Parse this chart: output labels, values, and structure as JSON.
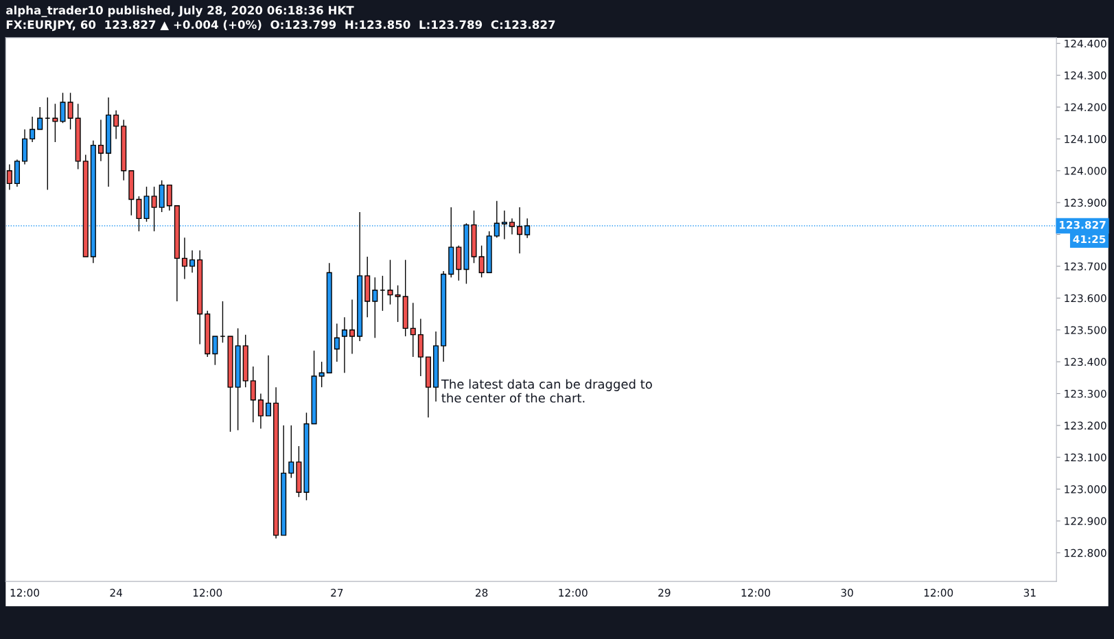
{
  "chart_data": {
    "type": "candlestick",
    "title": "alpha_trader10 published, July 28, 2020 06:18:36 HKT",
    "subtitle": "FX:EURJPY, 60  123.827 ▲ +0.004 (+0%)  O:123.799  H:123.850  L:123.789  C:123.827",
    "categories": [
      null,
      null,
      "12:00",
      null,
      null,
      null,
      null,
      null,
      null,
      null,
      null,
      null,
      null,
      null,
      "24",
      null,
      null,
      null,
      null,
      null,
      null,
      null,
      null,
      null,
      null,
      null,
      "12:00",
      null,
      null,
      null,
      null,
      null,
      null,
      null,
      null,
      null,
      null,
      null,
      null,
      null,
      null,
      null,
      null,
      "27",
      null,
      null,
      null,
      null,
      null,
      null,
      null,
      null,
      null,
      null,
      null,
      null,
      null,
      null,
      null,
      null,
      null,
      null,
      "28",
      null,
      null,
      null,
      null,
      null,
      null,
      null,
      null,
      null,
      null,
      null,
      "12:00",
      null,
      null,
      null,
      null,
      null,
      null,
      null,
      null,
      null,
      null,
      null,
      "29",
      null,
      null,
      null,
      null,
      null,
      null,
      null,
      null,
      null,
      null,
      null,
      "12:00",
      null,
      null,
      null,
      null,
      null,
      null,
      null,
      null,
      null,
      null,
      null,
      "30",
      null,
      null,
      null,
      null,
      null,
      null,
      null,
      null,
      null,
      null,
      null,
      "12:00",
      null,
      null,
      null,
      null,
      null,
      null,
      null,
      null,
      null,
      null,
      null,
      "31",
      null,
      null,
      null
    ],
    "ohlc": [
      [
        124.0,
        124.02,
        123.94,
        123.96
      ],
      [
        123.96,
        124.035,
        123.95,
        124.03
      ],
      [
        124.03,
        124.13,
        124.02,
        124.1
      ],
      [
        124.1,
        124.17,
        124.09,
        124.13
      ],
      [
        124.13,
        124.2,
        124.13,
        124.165
      ],
      [
        124.165,
        124.23,
        123.94,
        124.165
      ],
      [
        124.165,
        124.21,
        124.09,
        124.155
      ],
      [
        124.155,
        124.245,
        124.15,
        124.215
      ],
      [
        124.215,
        124.245,
        124.13,
        124.165
      ],
      [
        124.165,
        124.21,
        124.005,
        124.03
      ],
      [
        124.03,
        124.05,
        123.73,
        123.73
      ],
      [
        123.73,
        124.095,
        123.71,
        124.08
      ],
      [
        124.08,
        124.16,
        124.03,
        124.055
      ],
      [
        124.055,
        124.23,
        123.95,
        124.175
      ],
      [
        124.175,
        124.19,
        124.1,
        124.14
      ],
      [
        124.14,
        124.16,
        123.97,
        124.0
      ],
      [
        124.0,
        124.0,
        123.86,
        123.91
      ],
      [
        123.91,
        123.92,
        123.81,
        123.85
      ],
      [
        123.85,
        123.95,
        123.84,
        123.92
      ],
      [
        123.92,
        123.95,
        123.81,
        123.885
      ],
      [
        123.885,
        123.97,
        123.87,
        123.955
      ],
      [
        123.955,
        123.955,
        123.875,
        123.89
      ],
      [
        123.89,
        123.89,
        123.59,
        123.725
      ],
      [
        123.725,
        123.79,
        123.66,
        123.7
      ],
      [
        123.7,
        123.75,
        123.68,
        123.72
      ],
      [
        123.72,
        123.75,
        123.455,
        123.55
      ],
      [
        123.55,
        123.56,
        123.415,
        123.425
      ],
      [
        123.425,
        123.48,
        123.39,
        123.48
      ],
      [
        123.48,
        123.59,
        123.46,
        123.48
      ],
      [
        123.48,
        123.48,
        123.18,
        123.32
      ],
      [
        123.32,
        123.505,
        123.185,
        123.45
      ],
      [
        123.45,
        123.485,
        123.32,
        123.34
      ],
      [
        123.34,
        123.385,
        123.21,
        123.28
      ],
      [
        123.28,
        123.3,
        123.19,
        123.23
      ],
      [
        123.23,
        123.42,
        123.23,
        123.27
      ],
      [
        123.27,
        123.32,
        122.845,
        122.855
      ],
      [
        122.855,
        123.2,
        122.855,
        123.05
      ],
      [
        123.05,
        123.2,
        123.035,
        123.085
      ],
      [
        123.085,
        123.135,
        122.975,
        122.99
      ],
      [
        122.99,
        123.24,
        122.965,
        123.205
      ],
      [
        123.205,
        123.435,
        123.205,
        123.355
      ],
      [
        123.355,
        123.4,
        123.32,
        123.365
      ],
      [
        123.365,
        123.71,
        123.365,
        123.68
      ],
      [
        123.44,
        123.52,
        123.4,
        123.475
      ],
      [
        123.48,
        123.54,
        123.365,
        123.5
      ],
      [
        123.5,
        123.595,
        123.425,
        123.48
      ],
      [
        123.48,
        123.87,
        123.465,
        123.67
      ],
      [
        123.67,
        123.73,
        123.54,
        123.59
      ],
      [
        123.59,
        123.665,
        123.475,
        123.625
      ],
      [
        123.625,
        123.67,
        123.56,
        123.625
      ],
      [
        123.625,
        123.72,
        123.58,
        123.61
      ],
      [
        123.61,
        123.64,
        123.525,
        123.605
      ],
      [
        123.605,
        123.72,
        123.48,
        123.505
      ],
      [
        123.505,
        123.585,
        123.415,
        123.485
      ],
      [
        123.485,
        123.535,
        123.355,
        123.415
      ],
      [
        123.415,
        123.415,
        123.225,
        123.32
      ],
      [
        123.32,
        123.495,
        123.275,
        123.45
      ],
      [
        123.45,
        123.685,
        123.4,
        123.675
      ],
      [
        123.675,
        123.885,
        123.665,
        123.76
      ],
      [
        123.76,
        123.765,
        123.655,
        123.69
      ],
      [
        123.69,
        123.835,
        123.645,
        123.83
      ],
      [
        123.83,
        123.875,
        123.71,
        123.73
      ],
      [
        123.73,
        123.765,
        123.665,
        123.68
      ],
      [
        123.68,
        123.81,
        123.68,
        123.795
      ],
      [
        123.795,
        123.905,
        123.79,
        123.835
      ],
      [
        123.833,
        123.875,
        123.785,
        123.838
      ],
      [
        123.838,
        123.85,
        123.8,
        123.825
      ],
      [
        123.825,
        123.885,
        123.74,
        123.8
      ],
      [
        123.799,
        123.85,
        123.789,
        123.827
      ],
      null,
      null,
      null,
      null,
      null,
      null,
      null,
      null,
      null,
      null,
      null,
      null,
      null,
      null,
      null,
      null,
      null,
      null,
      null,
      null,
      null,
      null,
      null,
      null,
      null,
      null,
      null,
      null,
      null,
      null,
      null,
      null,
      null,
      null,
      null,
      null,
      null,
      null,
      null,
      null,
      null,
      null,
      null,
      null,
      null,
      null,
      null,
      null,
      null,
      null,
      null,
      null,
      null,
      null,
      null,
      null,
      null,
      null,
      null,
      null,
      null,
      null,
      null,
      null,
      null,
      null,
      null,
      null,
      null
    ],
    "ylim": [
      122.71,
      124.418
    ],
    "yticks": [
      {
        "value": 122.8,
        "label": "122.800"
      },
      {
        "value": 122.9,
        "label": "122.900"
      },
      {
        "value": 123.0,
        "label": "123.000"
      },
      {
        "value": 123.1,
        "label": "123.100"
      },
      {
        "value": 123.2,
        "label": "123.200"
      },
      {
        "value": 123.3,
        "label": "123.300"
      },
      {
        "value": 123.4,
        "label": "123.400"
      },
      {
        "value": 123.5,
        "label": "123.500"
      },
      {
        "value": 123.6,
        "label": "123.600"
      },
      {
        "value": 123.7,
        "label": "123.700"
      },
      {
        "value": 123.8,
        "label": null
      },
      {
        "value": 123.9,
        "label": "123.900"
      },
      {
        "value": 124.0,
        "label": "124.000"
      },
      {
        "value": 124.1,
        "label": "124.100"
      },
      {
        "value": 124.2,
        "label": "124.200"
      },
      {
        "value": 124.3,
        "label": "124.300"
      },
      {
        "value": 124.4,
        "label": "124.400"
      }
    ],
    "ref_lines": [
      {
        "axis": "y",
        "value": 123.827,
        "label": "123.827",
        "color": "#2196f3",
        "line_style": "dotted"
      }
    ],
    "annotations": [
      "The latest data can be dragged to\nthe center of the chart.",
      "41:25"
    ]
  }
}
